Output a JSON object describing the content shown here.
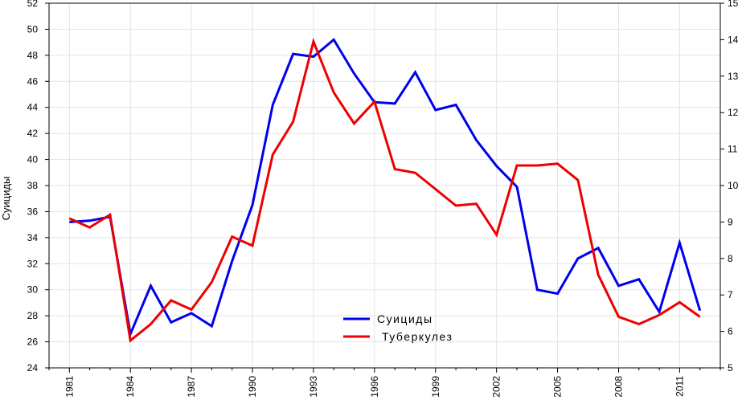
{
  "chart_data": {
    "type": "line",
    "title": "",
    "xlabel": "",
    "ylabel": "Суициды",
    "y2label": "",
    "xlim": [
      1980,
      2013
    ],
    "x_ticks": [
      1981,
      1984,
      1987,
      1990,
      1993,
      1996,
      1999,
      2002,
      2005,
      2008,
      2011
    ],
    "ylim": [
      24,
      52
    ],
    "y_ticks": [
      24,
      26,
      28,
      30,
      32,
      34,
      36,
      38,
      40,
      42,
      44,
      46,
      48,
      50,
      52
    ],
    "y2lim": [
      5,
      15
    ],
    "y2_ticks": [
      5,
      6,
      7,
      8,
      9,
      10,
      11,
      12,
      13,
      14,
      15
    ],
    "grid": true,
    "legend_position": "bottom-center",
    "x": [
      1981,
      1982,
      1983,
      1984,
      1985,
      1986,
      1987,
      1988,
      1989,
      1990,
      1991,
      1992,
      1993,
      1994,
      1995,
      1996,
      1997,
      1998,
      1999,
      2000,
      2001,
      2002,
      2003,
      2004,
      2005,
      2006,
      2007,
      2008,
      2009,
      2010,
      2011,
      2012
    ],
    "series": [
      {
        "name": "Суициды",
        "axis": "left",
        "color": "#0000ee",
        "values": [
          35.2,
          35.3,
          35.6,
          26.6,
          30.3,
          27.5,
          28.2,
          27.2,
          32.2,
          36.5,
          44.2,
          48.1,
          47.9,
          49.2,
          46.6,
          44.4,
          44.3,
          46.7,
          43.8,
          44.2,
          41.5,
          39.5,
          37.9,
          30.0,
          29.7,
          32.4,
          33.2,
          30.3,
          30.8,
          28.3,
          33.6,
          28.4
        ]
      },
      {
        "name": "Туберкулез",
        "axis": "right",
        "color": "#ee0000",
        "values": [
          9.1,
          8.85,
          9.2,
          5.75,
          6.2,
          6.85,
          6.6,
          7.35,
          8.6,
          8.35,
          10.85,
          11.75,
          13.95,
          12.55,
          11.7,
          12.3,
          10.45,
          10.35,
          9.9,
          9.45,
          9.5,
          8.65,
          10.55,
          10.55,
          10.6,
          10.15,
          7.55,
          6.4,
          6.2,
          6.45,
          6.8,
          6.4
        ]
      }
    ]
  }
}
